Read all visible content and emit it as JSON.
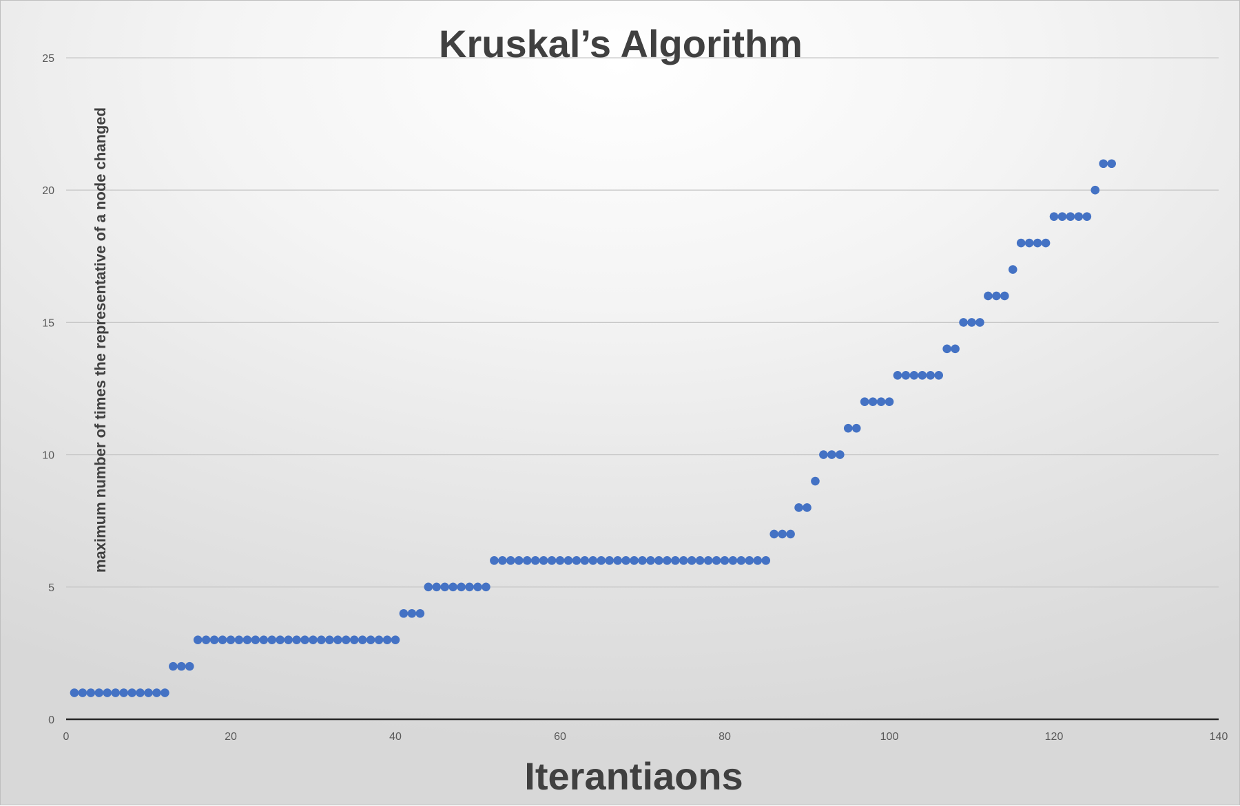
{
  "chart_data": {
    "type": "scatter",
    "title": "Kruskal’s Algorithm",
    "xlabel": "Iterantiaons",
    "ylabel": "maximum number of times the representative of a node changed",
    "xlim": [
      0,
      140
    ],
    "ylim": [
      0,
      25
    ],
    "x_ticks": [
      0,
      20,
      40,
      60,
      80,
      100,
      120,
      140
    ],
    "y_ticks": [
      0,
      5,
      10,
      15,
      20,
      25
    ],
    "grid": true,
    "legend": "none",
    "marker_color": "#4472C4",
    "series": [
      {
        "x": [
          1,
          2,
          3,
          4,
          5,
          6,
          7,
          8,
          9,
          10,
          11,
          12,
          13,
          14,
          15,
          16,
          17,
          18,
          19,
          20,
          21,
          22,
          23,
          24,
          25,
          26,
          27,
          28,
          29,
          30,
          31,
          32,
          33,
          34,
          35,
          36,
          37,
          38,
          39,
          40,
          41,
          42,
          43,
          44,
          45,
          46,
          47,
          48,
          49,
          50,
          51,
          52,
          53,
          54,
          55,
          56,
          57,
          58,
          59,
          60,
          61,
          62,
          63,
          64,
          65,
          66,
          67,
          68,
          69,
          70,
          71,
          72,
          73,
          74,
          75,
          76,
          77,
          78,
          79,
          80,
          81,
          82,
          83,
          84,
          85,
          86,
          87,
          88,
          89,
          90,
          91,
          92,
          93,
          94,
          95,
          96,
          97,
          98,
          99,
          100,
          101,
          102,
          103,
          104,
          105,
          106,
          107,
          108,
          109,
          110,
          111,
          112,
          113,
          114,
          115,
          116,
          117,
          118,
          119,
          120,
          121,
          122,
          123,
          124,
          125,
          126,
          127
        ],
        "y": [
          1,
          1,
          1,
          1,
          1,
          1,
          1,
          1,
          1,
          1,
          1,
          1,
          2,
          2,
          2,
          3,
          3,
          3,
          3,
          3,
          3,
          3,
          3,
          3,
          3,
          3,
          3,
          3,
          3,
          3,
          3,
          3,
          3,
          3,
          3,
          3,
          3,
          3,
          3,
          3,
          4,
          4,
          4,
          5,
          5,
          5,
          5,
          5,
          5,
          5,
          5,
          6,
          6,
          6,
          6,
          6,
          6,
          6,
          6,
          6,
          6,
          6,
          6,
          6,
          6,
          6,
          6,
          6,
          6,
          6,
          6,
          6,
          6,
          6,
          6,
          6,
          6,
          6,
          6,
          6,
          6,
          6,
          6,
          6,
          6,
          7,
          7,
          7,
          8,
          8,
          9,
          10,
          10,
          10,
          11,
          11,
          12,
          12,
          12,
          12,
          13,
          13,
          13,
          13,
          13,
          13,
          14,
          14,
          15,
          15,
          15,
          16,
          16,
          16,
          17,
          18,
          18,
          18,
          18,
          19,
          19,
          19,
          19,
          19,
          20,
          21,
          21
        ]
      }
    ]
  }
}
